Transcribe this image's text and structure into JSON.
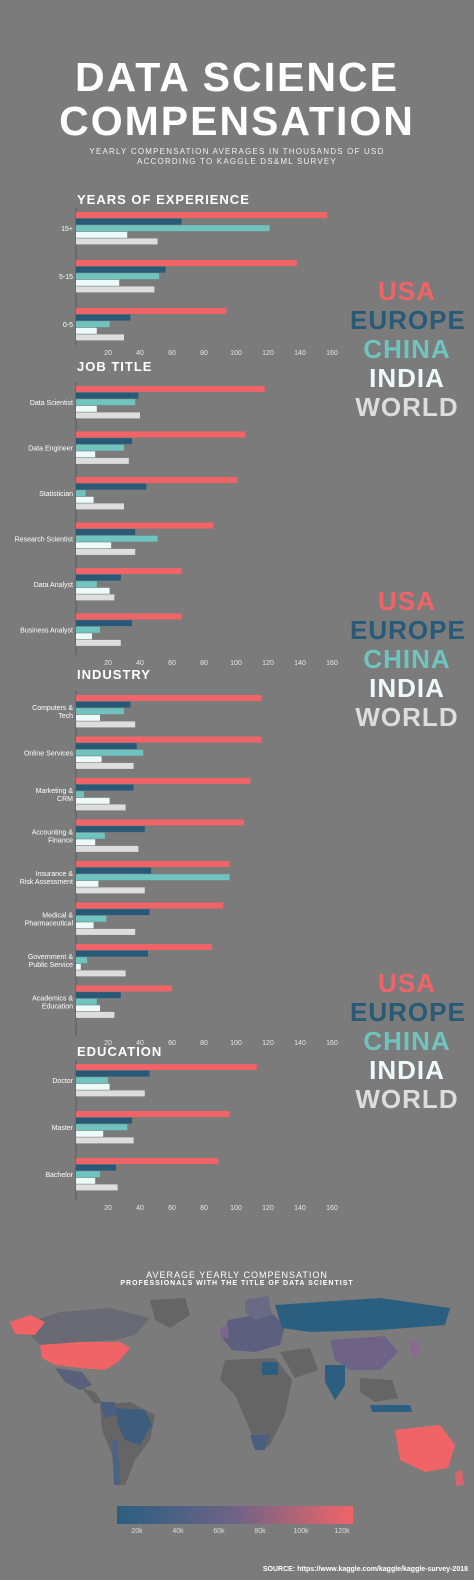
{
  "header": {
    "title_line1": "DATA SCIENCE",
    "title_line2": "COMPENSATION",
    "subtitle_line1": "YEARLY COMPENSATION AVERAGES IN THOUSANDS OF USD",
    "subtitle_line2": "ACCORDING TO KAGGLE DS&ML SURVEY"
  },
  "legend": {
    "items": [
      {
        "label": "USA",
        "color": "#f06468"
      },
      {
        "label": "EUROPE",
        "color": "#285a78"
      },
      {
        "label": "CHINA",
        "color": "#6fc4c0"
      },
      {
        "label": "INDIA",
        "color": "#ecfbf9"
      },
      {
        "label": "WORLD",
        "color": "#dddddd"
      }
    ]
  },
  "chart_data": [
    {
      "type": "bar",
      "orientation": "horizontal",
      "title": "YEARS OF EXPERIENCE",
      "categories": [
        "15+",
        "5-15",
        "0-5"
      ],
      "series": [
        {
          "name": "USA",
          "values": [
            157,
            138,
            94
          ]
        },
        {
          "name": "EUROPE",
          "values": [
            66,
            56,
            34
          ]
        },
        {
          "name": "CHINA",
          "values": [
            121,
            52,
            21
          ]
        },
        {
          "name": "INDIA",
          "values": [
            32,
            27,
            13
          ]
        },
        {
          "name": "WORLD",
          "values": [
            51,
            49,
            30
          ]
        }
      ],
      "xticks": [
        20,
        40,
        60,
        80,
        100,
        120,
        140,
        160
      ],
      "xlim": [
        0,
        160
      ]
    },
    {
      "type": "bar",
      "orientation": "horizontal",
      "title": "JOB TITLE",
      "categories": [
        "Data Scientist",
        "Data Engineer",
        "Statistician",
        "Research Scientist",
        "Data Analyst",
        "Business Analyst"
      ],
      "series": [
        {
          "name": "USA",
          "values": [
            118,
            106,
            101,
            86,
            66,
            66
          ]
        },
        {
          "name": "EUROPE",
          "values": [
            39,
            35,
            44,
            37,
            28,
            35
          ]
        },
        {
          "name": "CHINA",
          "values": [
            37,
            30,
            6,
            51,
            13,
            15
          ]
        },
        {
          "name": "INDIA",
          "values": [
            13,
            12,
            11,
            22,
            21,
            10
          ]
        },
        {
          "name": "WORLD",
          "values": [
            40,
            33,
            30,
            37,
            24,
            28
          ]
        }
      ],
      "xticks": [
        20,
        40,
        60,
        80,
        100,
        120,
        140,
        160
      ],
      "xlim": [
        0,
        160
      ]
    },
    {
      "type": "bar",
      "orientation": "horizontal",
      "title": "INDUSTRY",
      "categories": [
        "Computers & Tech",
        "Online Services",
        "Marketing & CRM",
        "Accounting & Finance",
        "Insurance & Risk Assessment",
        "Medical & Pharmaceutical",
        "Government & Public Service",
        "Academics & Education"
      ],
      "series": [
        {
          "name": "USA",
          "values": [
            116,
            116,
            109,
            105,
            96,
            92,
            85,
            60
          ]
        },
        {
          "name": "EUROPE",
          "values": [
            34,
            38,
            36,
            43,
            47,
            46,
            45,
            28
          ]
        },
        {
          "name": "CHINA",
          "values": [
            30,
            42,
            5,
            18,
            96,
            19,
            7,
            13
          ]
        },
        {
          "name": "INDIA",
          "values": [
            15,
            16,
            21,
            12,
            14,
            11,
            3,
            15
          ]
        },
        {
          "name": "WORLD",
          "values": [
            37,
            36,
            31,
            39,
            43,
            37,
            31,
            24
          ]
        }
      ],
      "xticks": [
        20,
        40,
        60,
        80,
        100,
        120,
        140,
        160
      ],
      "xlim": [
        0,
        160
      ]
    },
    {
      "type": "bar",
      "orientation": "horizontal",
      "title": "EDUCATION",
      "categories": [
        "Doctor",
        "Master",
        "Bachelor"
      ],
      "series": [
        {
          "name": "USA",
          "values": [
            113,
            96,
            89
          ]
        },
        {
          "name": "EUROPE",
          "values": [
            46,
            35,
            25
          ]
        },
        {
          "name": "CHINA",
          "values": [
            20,
            32,
            15
          ]
        },
        {
          "name": "INDIA",
          "values": [
            21,
            17,
            12
          ]
        },
        {
          "name": "WORLD",
          "values": [
            43,
            36,
            26
          ]
        }
      ],
      "xticks": [
        20,
        40,
        60,
        80,
        100,
        120,
        140,
        160
      ],
      "xlim": [
        0,
        160
      ]
    }
  ],
  "map": {
    "title": "AVERAGE YEARLY COMPENSATION",
    "subtitle": "PROFESSIONALS WITH THE TITLE OF DATA SCIENTIST",
    "scale_labels": [
      "20k",
      "40k",
      "60k",
      "80k",
      "100k",
      "120k"
    ],
    "scale_colors": [
      "#2b5f7f",
      "#f06468"
    ],
    "land_color": "#656565"
  },
  "source": "SOURCE: https://www.kaggle.com/kaggle/kaggle-survey-2018"
}
